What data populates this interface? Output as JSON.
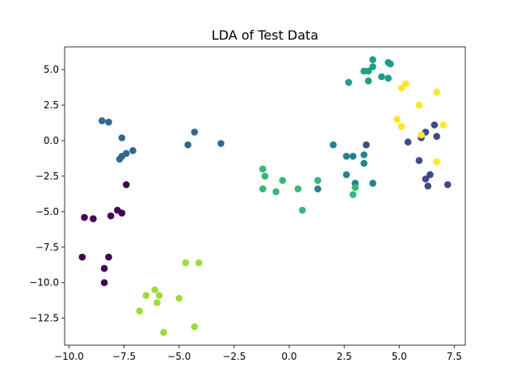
{
  "chart_data": {
    "type": "scatter",
    "title": "LDA of Test Data",
    "xlabel": "",
    "ylabel": "",
    "xlim": [
      -10.2,
      8.0
    ],
    "ylim": [
      -14.4,
      6.6
    ],
    "xticks": [
      -10.0,
      -7.5,
      -5.0,
      -2.5,
      0.0,
      2.5,
      5.0,
      7.5
    ],
    "xtick_labels": [
      "−10.0",
      "−7.5",
      "−5.0",
      "−2.5",
      "0.0",
      "2.5",
      "5.0",
      "7.5"
    ],
    "yticks": [
      -12.5,
      -10.0,
      -7.5,
      -5.0,
      -2.5,
      0.0,
      2.5,
      5.0
    ],
    "ytick_labels": [
      "−12.5",
      "−10.0",
      "−7.5",
      "−5.0",
      "−2.5",
      "0.0",
      "2.5",
      "5.0"
    ],
    "grid": false,
    "legend": "none",
    "series": [
      {
        "color": "#440154",
        "points": [
          [
            -9.3,
            -5.4
          ],
          [
            -8.9,
            -5.5
          ],
          [
            -8.1,
            -5.3
          ],
          [
            -7.8,
            -4.9
          ],
          [
            -7.6,
            -5.1
          ],
          [
            -7.4,
            -3.1
          ],
          [
            -9.4,
            -8.2
          ],
          [
            -8.4,
            -9.0
          ],
          [
            -8.2,
            -8.2
          ],
          [
            -8.4,
            -10.0
          ]
        ]
      },
      {
        "color": "#3e4989",
        "points": [
          [
            5.4,
            -0.1
          ],
          [
            6.0,
            0.2
          ],
          [
            6.2,
            0.6
          ],
          [
            6.6,
            1.1
          ],
          [
            6.7,
            0.3
          ],
          [
            7.2,
            -3.1
          ],
          [
            6.4,
            -2.4
          ],
          [
            6.2,
            -2.7
          ],
          [
            6.3,
            -3.2
          ],
          [
            5.9,
            -1.4
          ],
          [
            3.5,
            -0.3
          ]
        ]
      },
      {
        "color": "#31688e",
        "points": [
          [
            -8.5,
            1.4
          ],
          [
            -8.2,
            1.3
          ],
          [
            -7.6,
            0.2
          ],
          [
            -4.3,
            0.6
          ],
          [
            -4.6,
            -0.3
          ],
          [
            -3.1,
            -0.2
          ],
          [
            -7.1,
            -0.7
          ],
          [
            -7.4,
            -0.9
          ],
          [
            -7.6,
            -1.1
          ],
          [
            -7.7,
            -1.3
          ]
        ]
      },
      {
        "color": "#26828e",
        "points": [
          [
            2.0,
            -0.3
          ],
          [
            2.6,
            -1.1
          ],
          [
            2.9,
            -1.1
          ],
          [
            3.4,
            -1.0
          ],
          [
            3.4,
            -1.6
          ],
          [
            2.6,
            -2.4
          ],
          [
            3.0,
            -3.0
          ],
          [
            3.8,
            -3.0
          ],
          [
            1.3,
            -3.4
          ]
        ]
      },
      {
        "color": "#1f9e89",
        "points": [
          [
            3.8,
            5.7
          ],
          [
            4.5,
            5.5
          ],
          [
            4.6,
            5.4
          ],
          [
            3.4,
            4.9
          ],
          [
            3.6,
            4.9
          ],
          [
            3.8,
            5.2
          ],
          [
            4.2,
            4.5
          ],
          [
            4.5,
            4.4
          ],
          [
            2.7,
            4.1
          ],
          [
            3.6,
            4.2
          ]
        ]
      },
      {
        "color": "#35b779",
        "points": [
          [
            -1.2,
            -2.0
          ],
          [
            -1.1,
            -2.5
          ],
          [
            -0.3,
            -2.8
          ],
          [
            1.3,
            -2.8
          ],
          [
            -1.2,
            -3.4
          ],
          [
            -0.6,
            -3.6
          ],
          [
            0.4,
            -3.4
          ],
          [
            3.0,
            -3.3
          ],
          [
            2.9,
            -3.8
          ],
          [
            0.6,
            -4.9
          ]
        ]
      },
      {
        "color": "#a0da39",
        "points": [
          [
            -4.7,
            -8.6
          ],
          [
            -4.1,
            -8.6
          ],
          [
            -6.1,
            -10.5
          ],
          [
            -6.5,
            -10.9
          ],
          [
            -5.9,
            -10.9
          ],
          [
            -5.0,
            -11.1
          ],
          [
            -6.0,
            -11.4
          ],
          [
            -6.8,
            -12.0
          ],
          [
            -4.3,
            -13.1
          ],
          [
            -5.7,
            -13.5
          ]
        ]
      },
      {
        "color": "#fde725",
        "points": [
          [
            5.3,
            4.0
          ],
          [
            5.1,
            3.7
          ],
          [
            6.7,
            3.4
          ],
          [
            5.9,
            2.5
          ],
          [
            4.9,
            1.5
          ],
          [
            5.1,
            1.0
          ],
          [
            7.0,
            1.1
          ],
          [
            6.0,
            0.4
          ],
          [
            6.7,
            -1.5
          ]
        ]
      }
    ]
  }
}
